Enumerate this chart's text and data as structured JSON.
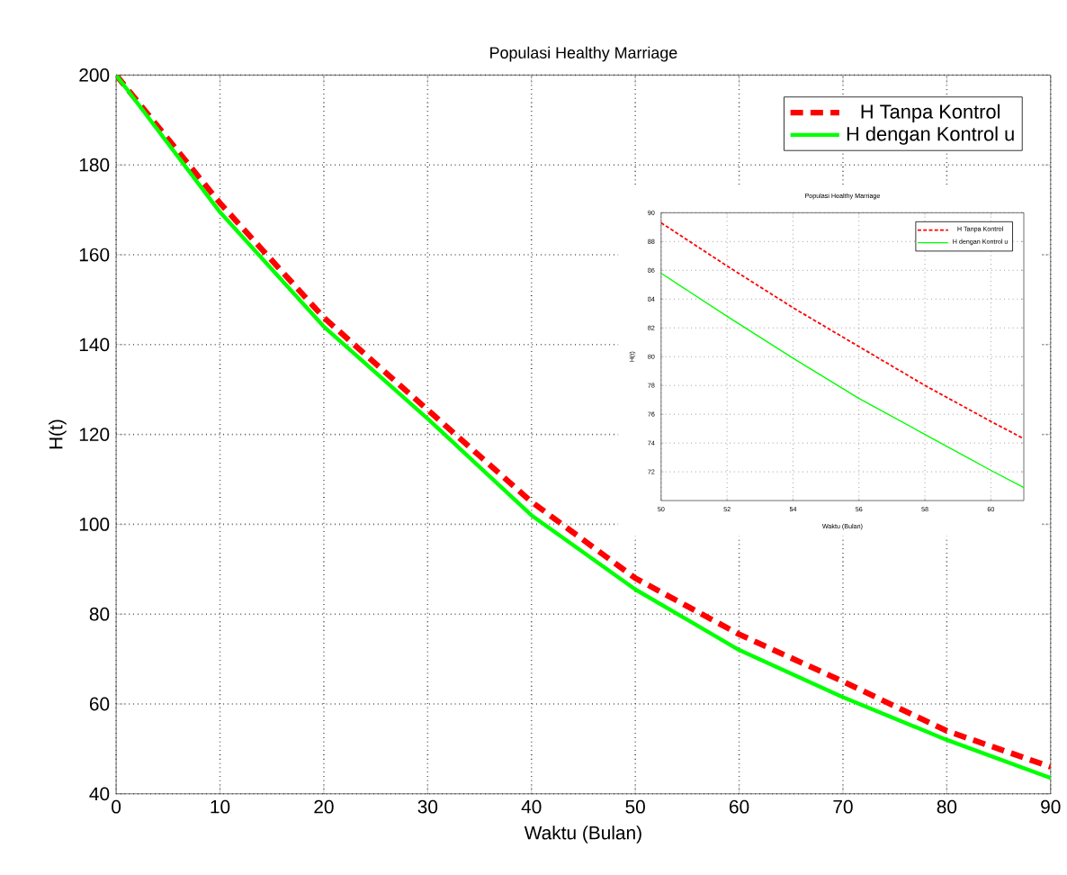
{
  "chart_data": [
    {
      "type": "line",
      "title": "Populasi Healthy Marriage",
      "xlabel": "Waktu (Bulan)",
      "ylabel": "H(t)",
      "x": [
        0,
        10,
        20,
        30,
        40,
        50,
        60,
        70,
        80,
        90
      ],
      "series": [
        {
          "name": "H Tanpa Kontrol",
          "color": "#ff0000",
          "line_style": "dashed",
          "values": [
            200,
            171.5,
            146,
            125.5,
            105,
            88,
            75.5,
            65,
            54,
            46
          ]
        },
        {
          "name": "H dengan Kontrol u",
          "color": "#00ff00",
          "line_style": "solid",
          "values": [
            200,
            169.5,
            144,
            123.5,
            102,
            85.5,
            72,
            61.5,
            52,
            43.5
          ]
        }
      ],
      "xlim": [
        0,
        90
      ],
      "ylim": [
        40,
        200
      ],
      "xticks": [
        0,
        10,
        20,
        30,
        40,
        50,
        60,
        70,
        80,
        90
      ],
      "yticks": [
        40,
        60,
        80,
        100,
        120,
        140,
        160,
        180,
        200
      ],
      "grid": true,
      "legend": "top right",
      "marker": "none"
    },
    {
      "type": "line",
      "title": "Populasi Healthy Marriage",
      "xlabel": "Waktu (Bulan)",
      "ylabel": "H(t)",
      "x": [
        50,
        52,
        54,
        56,
        58,
        60,
        61
      ],
      "series": [
        {
          "name": "H Tanpa Kontrol",
          "color": "#ff0000",
          "line_style": "dashed",
          "values": [
            89.3,
            86.3,
            83.4,
            80.7,
            78.0,
            75.5,
            74.3
          ]
        },
        {
          "name": "H dengan Kontrol u",
          "color": "#00ff00",
          "line_style": "solid",
          "values": [
            85.8,
            82.8,
            79.9,
            77.1,
            74.6,
            72.1,
            70.9
          ]
        }
      ],
      "xlim": [
        50,
        61
      ],
      "ylim": [
        70,
        90
      ],
      "xticks": [
        50,
        52,
        54,
        56,
        58,
        60
      ],
      "yticks": [
        72,
        74,
        76,
        78,
        80,
        82,
        84,
        86,
        88,
        90
      ],
      "grid": true,
      "legend": "top right",
      "marker": "none"
    }
  ]
}
